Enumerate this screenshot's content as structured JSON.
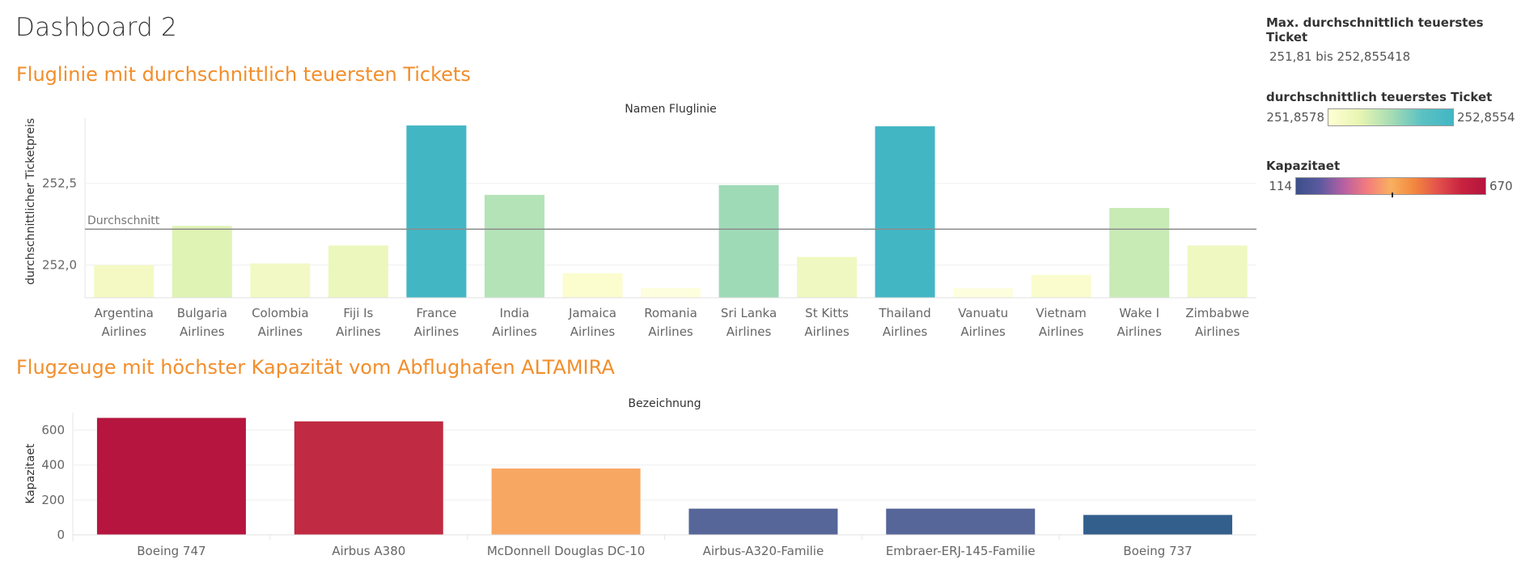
{
  "dashboard_title": "Dashboard 2",
  "sections": {
    "top_title": "Fluglinie mit durchschnittlich teuersten Tickets",
    "bottom_title": "Flugzeuge mit höchster Kapazität vom Abflughafen ALTAMIRA"
  },
  "legends": {
    "max": {
      "title": "Max. durchschnittlich teuerstes Ticket",
      "value": "251,81 bis 252,855418"
    },
    "ticket": {
      "title": "durchschnittlich teuerstes Ticket",
      "min": "251,8578",
      "max": "252,8554"
    },
    "kapazitaet": {
      "title": "Kapazitaet",
      "min": "114",
      "max": "670",
      "marker_fraction": 0.5
    }
  },
  "colors": {
    "accent": "#f28e2b",
    "ticket_ramp": [
      "#ffffd4",
      "#e8f5b2",
      "#a7ddb4",
      "#5bc1c3",
      "#41b6c4"
    ],
    "kap_ramp": [
      "#3b4f8b",
      "#b65fa3",
      "#f47b7d",
      "#f8b060",
      "#e2514c",
      "#b5153e"
    ]
  },
  "chart_data": [
    {
      "type": "bar",
      "title": "Namen Fluglinie",
      "ylabel": "durchschnittlicher Ticketpreis",
      "xlabel": "",
      "ylim": [
        251.8,
        252.9
      ],
      "yticks": [
        {
          "value": 252.0,
          "label": "252,0"
        },
        {
          "value": 252.5,
          "label": "252,5"
        }
      ],
      "reference_line": {
        "label": "Durchschnitt",
        "value": 252.22
      },
      "categories": [
        [
          "Argentina",
          "Airlines"
        ],
        [
          "Bulgaria",
          "Airlines"
        ],
        [
          "Colombia",
          "Airlines"
        ],
        [
          "Fiji Is",
          "Airlines"
        ],
        [
          "France",
          "Airlines"
        ],
        [
          "India",
          "Airlines"
        ],
        [
          "Jamaica",
          "Airlines"
        ],
        [
          "Romania",
          "Airlines"
        ],
        [
          "Sri Lanka",
          "Airlines"
        ],
        [
          "St Kitts",
          "Airlines"
        ],
        [
          "Thailand",
          "Airlines"
        ],
        [
          "Vanuatu",
          "Airlines"
        ],
        [
          "Vietnam",
          "Airlines"
        ],
        [
          "Wake I",
          "Airlines"
        ],
        [
          "Zimbabwe",
          "Airlines"
        ]
      ],
      "values": [
        252.0,
        252.24,
        252.01,
        252.12,
        252.855,
        252.43,
        251.95,
        251.86,
        252.49,
        252.05,
        252.85,
        251.858,
        251.94,
        252.35,
        252.12
      ],
      "colors": [
        "#f4f9c4",
        "#dff3b4",
        "#f2f9c4",
        "#ecf7bd",
        "#43b6c4",
        "#b4e3b8",
        "#fbfdcf",
        "#fdfedd",
        "#9fdab7",
        "#f0f8c1",
        "#43b6c4",
        "#fdfedd",
        "#fafcce",
        "#c8ebb6",
        "#eef8c0"
      ]
    },
    {
      "type": "bar",
      "title": "Bezeichnung",
      "ylabel": "Kapazitaet",
      "xlabel": "",
      "ylim": [
        0,
        700
      ],
      "yticks": [
        {
          "value": 0,
          "label": "0"
        },
        {
          "value": 200,
          "label": "200"
        },
        {
          "value": 400,
          "label": "400"
        },
        {
          "value": 600,
          "label": "600"
        }
      ],
      "categories": [
        "Boeing 747",
        "Airbus A380",
        "McDonnell Douglas DC-10",
        "Airbus-A320-Familie",
        "Embraer-ERJ-145-Familie",
        "Boeing 737"
      ],
      "values": [
        670,
        650,
        380,
        150,
        150,
        114
      ],
      "colors": [
        "#b5153e",
        "#c02a42",
        "#f8a763",
        "#566699",
        "#566699",
        "#335f8c"
      ]
    }
  ]
}
